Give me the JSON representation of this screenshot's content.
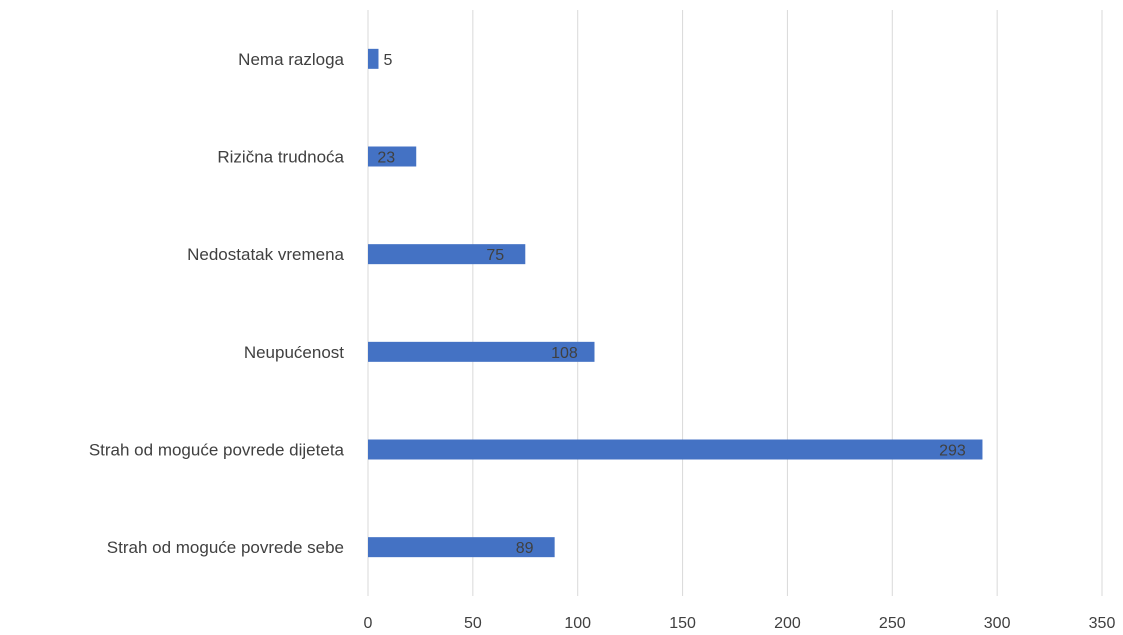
{
  "chart_data": {
    "type": "bar",
    "orientation": "horizontal",
    "categories": [
      "Nema razloga",
      "Rizična trudnoća",
      "Nedostatak vremena",
      "Neupućenost",
      "Strah od moguće povrede dijeteta",
      "Strah od moguće povrede sebe"
    ],
    "values": [
      5,
      23,
      75,
      108,
      293,
      89
    ],
    "xlim": [
      0,
      350
    ],
    "xticks": [
      "0",
      "50",
      "100",
      "150",
      "200",
      "250",
      "300",
      "350"
    ],
    "grid": "vertical",
    "bar_color": "#4472C4",
    "data_labels": true
  }
}
